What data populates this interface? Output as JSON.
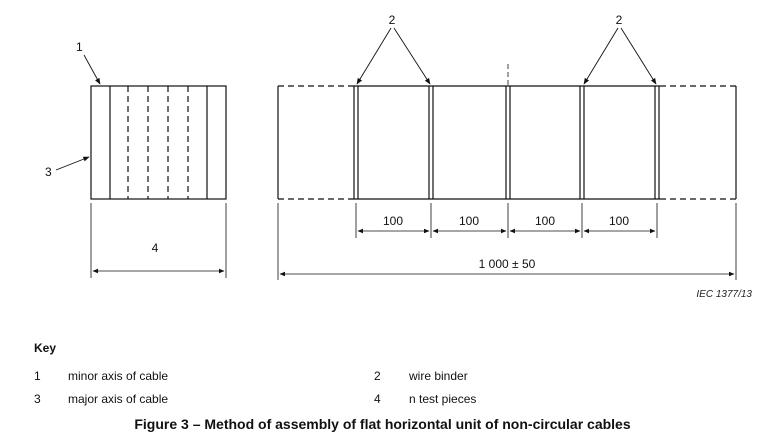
{
  "callouts": {
    "minor_axis": "1",
    "wire_binder_left": "2",
    "wire_binder_right": "2",
    "major_axis": "3",
    "test_pieces": "4"
  },
  "dimensions": {
    "segment_1": "100",
    "segment_2": "100",
    "segment_3": "100",
    "segment_4": "100",
    "total_length": "1 000 ± 50"
  },
  "credit": "IEC  1377/13",
  "key": {
    "title": "Key",
    "items": [
      {
        "num": "1",
        "text": "minor axis of cable"
      },
      {
        "num": "2",
        "text": "wire binder"
      },
      {
        "num": "3",
        "text": "major axis of cable"
      },
      {
        "num": "4",
        "text": "n test pieces"
      }
    ]
  },
  "caption": "Figure 3 – Method of assembly of flat horizontal unit of non-circular cables"
}
